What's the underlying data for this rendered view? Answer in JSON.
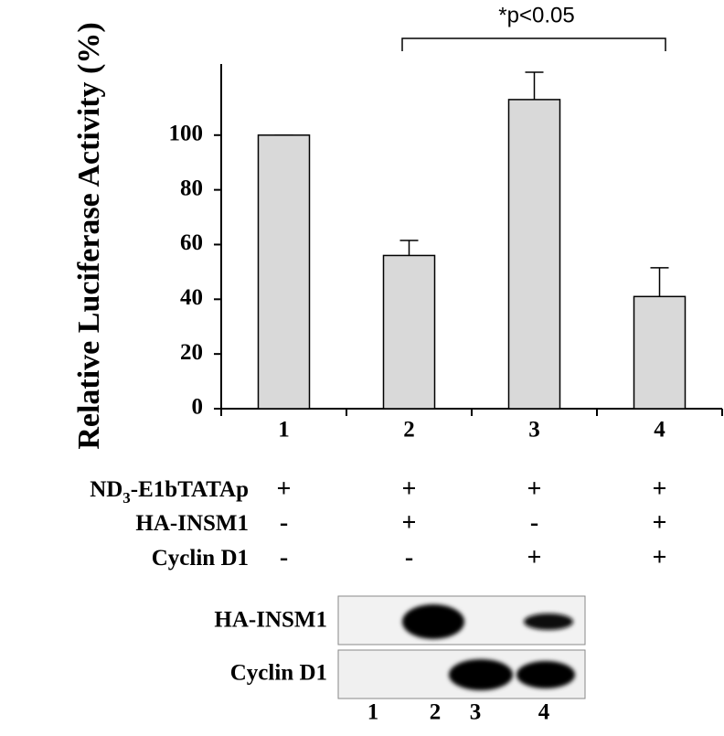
{
  "chart_data": {
    "type": "bar",
    "y_label": "Relative Luciferase Activity (%)",
    "annotation": "*p<0.05",
    "categories": [
      "1",
      "2",
      "3",
      "4"
    ],
    "values": [
      100,
      56,
      113,
      41
    ],
    "errors": [
      0,
      5.5,
      10,
      10.5
    ],
    "color": "#d9d9d9",
    "ylim": [
      0,
      126
    ],
    "yticks": [
      0,
      20,
      40,
      60,
      80,
      100
    ]
  },
  "treatments": {
    "rows": [
      {
        "label_parts": [
          "ND",
          "3",
          "-E1bTATAp"
        ],
        "marks": [
          "+",
          "+",
          "+",
          "+"
        ]
      },
      {
        "label_parts": [
          "HA-INSM1"
        ],
        "marks": [
          "-",
          "+",
          "-",
          "+"
        ]
      },
      {
        "label_parts": [
          "Cyclin D1"
        ],
        "marks": [
          "-",
          "-",
          "+",
          "+"
        ]
      }
    ]
  },
  "blot": {
    "labels": [
      "HA-INSM1",
      "Cyclin D1"
    ],
    "lanes": [
      "1",
      "2",
      "3",
      "4"
    ]
  }
}
